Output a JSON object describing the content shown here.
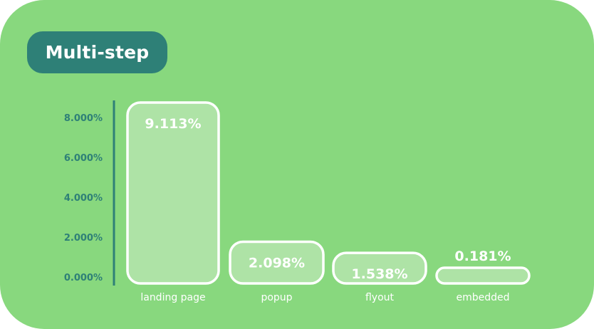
{
  "title": "Multi-step",
  "colors": {
    "background": "#88d87e",
    "title_pill": "#2e8077",
    "axis": "#2e8077",
    "tick_label": "#2e8077",
    "bar_fill": "#aee3a6",
    "bar_stroke": "#ffffff",
    "value_label": "#ffffff",
    "category_label": "#ffffff"
  },
  "chart_data": {
    "type": "bar",
    "categories": [
      "landing page",
      "popup",
      "flyout",
      "embedded"
    ],
    "values": [
      9.113,
      2.098,
      1.538,
      0.181
    ],
    "value_labels": [
      "9.113%",
      "2.098%",
      "1.538%",
      "0.181%"
    ],
    "yticks": [
      0,
      2,
      4,
      6,
      8
    ],
    "ytick_labels": [
      "0.000%",
      "2.000%",
      "4.000%",
      "6.000%",
      "8.000%"
    ],
    "ylim": [
      0,
      9.113
    ],
    "grid": false,
    "legend": "none"
  }
}
